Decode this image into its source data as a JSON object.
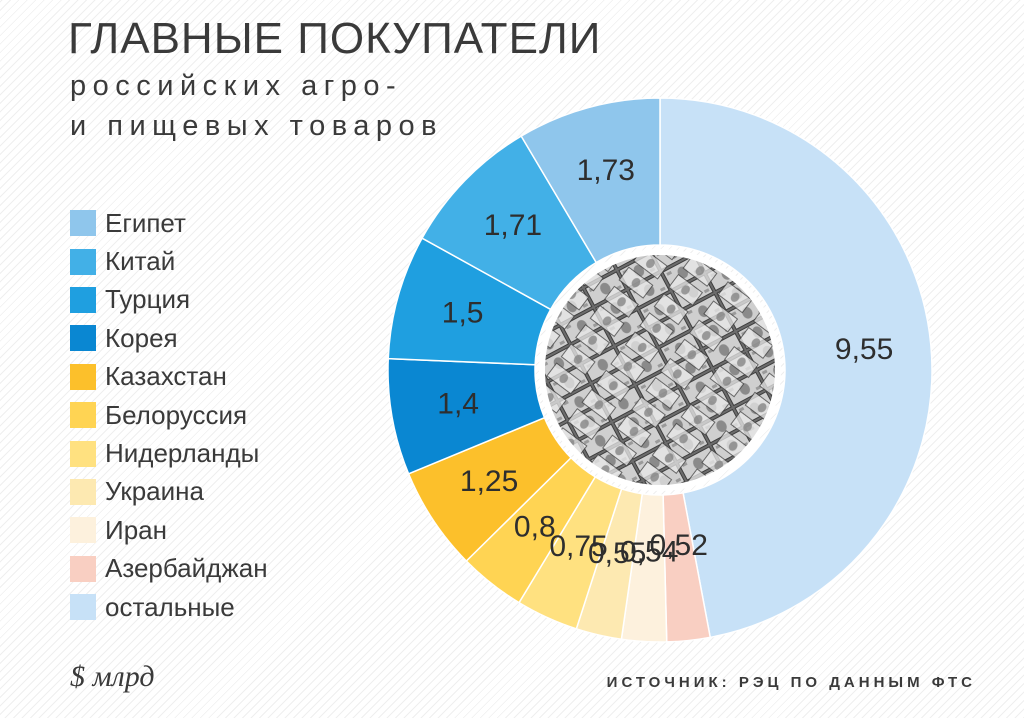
{
  "header": {
    "title": "ГЛАВНЫЕ ПОКУПАТЕЛИ",
    "subtitle_line1": "российских агро-",
    "subtitle_line2": "и пищевых товаров"
  },
  "footer": {
    "unit": "$ млрд",
    "source": "ИСТОЧНИК: РЭЦ ПО ДАННЫМ ФТС"
  },
  "center_image": "banknotes-pile-photo",
  "chart_data": {
    "type": "pie",
    "variant": "donut",
    "title": "ГЛАВНЫЕ ПОКУПАТЕЛИ российских агро- и пищевых товаров",
    "unit": "$ млрд",
    "legend_position": "left",
    "categories": [
      "Египет",
      "Китай",
      "Турция",
      "Корея",
      "Казахстан",
      "Белоруссия",
      "Нидерланды",
      "Украина",
      "Иран",
      "Азербайджан",
      "остальные"
    ],
    "values": [
      1.73,
      1.71,
      1.5,
      1.4,
      1.25,
      0.8,
      0.75,
      0.55,
      0.54,
      0.52,
      9.55
    ],
    "value_labels": [
      "1,73",
      "1,71",
      "1,5",
      "1,4",
      "1,25",
      "0,8",
      "0,75",
      "0,55",
      "0,54",
      "0,52",
      "9,55"
    ],
    "colors": [
      "#8fc6ec",
      "#42b0e7",
      "#1f9fe0",
      "#0a87d2",
      "#fcc02b",
      "#ffd453",
      "#ffe180",
      "#fde9b1",
      "#fdf1dd",
      "#f9cfc2",
      "#c7e1f7"
    ],
    "start_order": [
      "остальные",
      "Азербайджан",
      "Иран",
      "Украина",
      "Нидерланды",
      "Белоруссия",
      "Казахстан",
      "Корея",
      "Турция",
      "Китай",
      "Египет"
    ]
  }
}
